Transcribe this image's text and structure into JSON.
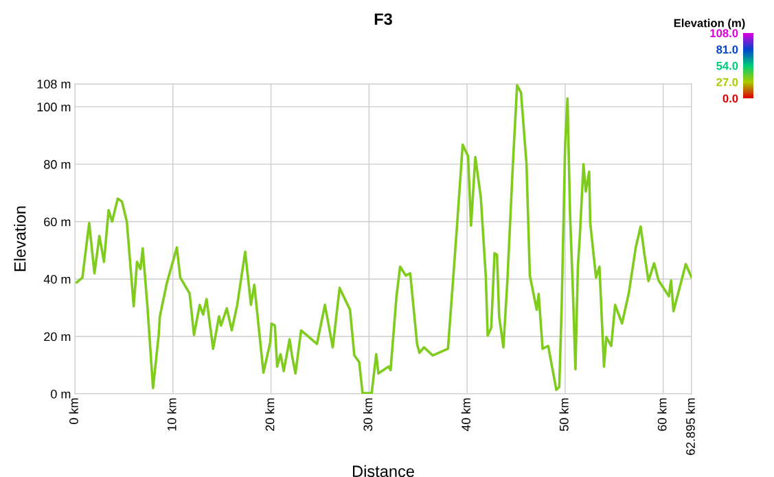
{
  "chart_data": {
    "type": "line",
    "title": "F3",
    "xlabel": "Distance",
    "ylabel": "Elevation",
    "clabel": "Elevation (m)",
    "x": [
      0.19,
      0.77,
      1.46,
      2.0,
      2.5,
      2.97,
      3.44,
      3.8,
      4.37,
      4.8,
      5.3,
      6.0,
      6.34,
      6.69,
      6.92,
      7.39,
      7.97,
      8.55,
      8.67,
      9.36,
      10.4,
      10.75,
      11.7,
      12.15,
      12.73,
      13.08,
      13.43,
      14.1,
      14.7,
      14.9,
      15.5,
      16.0,
      16.56,
      17.37,
      17.96,
      18.3,
      19.23,
      19.93,
      20.05,
      20.4,
      20.63,
      20.98,
      21.3,
      21.9,
      22.14,
      22.5,
      23.07,
      24.69,
      25.5,
      26.3,
      27.0,
      28.06,
      28.5,
      29.0,
      29.34,
      30.27,
      30.73,
      30.96,
      32.0,
      32.2,
      32.8,
      33.17,
      33.75,
      34.2,
      34.9,
      35.14,
      35.6,
      36.5,
      38.05,
      38.9,
      39.55,
      40.1,
      40.4,
      40.84,
      41.4,
      41.9,
      42.1,
      42.46,
      42.8,
      43.05,
      43.27,
      43.7,
      44.1,
      44.67,
      45.1,
      45.5,
      46.06,
      46.4,
      47.1,
      47.3,
      47.7,
      48.27,
      49.1,
      49.4,
      49.65,
      50.0,
      50.24,
      50.5,
      50.8,
      51.05,
      51.3,
      51.5,
      51.87,
      52.1,
      52.45,
      52.56,
      53.15,
      53.5,
      53.96,
      54.2,
      54.7,
      55.1,
      55.8,
      56.5,
      57.2,
      57.7,
      58.1,
      58.5,
      59.07,
      59.53,
      60.58,
      60.8,
      61.05,
      62.3,
      62.895
    ],
    "values": [
      38.8,
      40.5,
      59.5,
      42,
      55,
      46,
      64,
      60,
      68,
      67,
      60,
      30.5,
      46,
      43.5,
      50.7,
      31,
      2,
      20.5,
      27,
      38.3,
      51,
      40.5,
      35,
      20.5,
      31,
      27.6,
      33,
      15.7,
      27,
      23.8,
      29.8,
      22.1,
      31,
      49.5,
      31,
      38,
      7.4,
      18,
      24.5,
      23.8,
      9.5,
      13.8,
      7.9,
      19,
      13.4,
      7.1,
      22.1,
      17.4,
      31,
      16.2,
      36.9,
      29.3,
      13.4,
      11,
      0.2,
      0.2,
      13.8,
      7.1,
      9.5,
      8.3,
      34,
      44.3,
      41.2,
      42,
      17.4,
      14.3,
      16.2,
      13.4,
      15.7,
      55,
      86.8,
      82.8,
      58.6,
      82.5,
      68.4,
      41.4,
      20.3,
      23,
      49,
      48.5,
      27,
      16.2,
      38.8,
      80,
      107.5,
      105,
      80,
      41.2,
      29.3,
      34.8,
      15.7,
      16.7,
      1.4,
      2.4,
      31,
      86.8,
      102.9,
      62.6,
      34.8,
      8.6,
      44.3,
      55,
      80,
      70.5,
      77.4,
      59.5,
      40.5,
      44.3,
      9.5,
      19.8,
      16.7,
      31,
      24.5,
      35.2,
      51,
      58.3,
      48.3,
      39.3,
      45.5,
      39.5,
      34,
      39.5,
      28.8,
      45.2,
      40.5
    ],
    "xlim": [
      0,
      62.895
    ],
    "xticks": [
      {
        "value": 0,
        "label": "0 km"
      },
      {
        "value": 10,
        "label": "10 km"
      },
      {
        "value": 20,
        "label": "20 km"
      },
      {
        "value": 30,
        "label": "30 km"
      },
      {
        "value": 40,
        "label": "40 km"
      },
      {
        "value": 50,
        "label": "50 km"
      },
      {
        "value": 60,
        "label": "60 km"
      },
      {
        "value": 62.895,
        "label": "62.895 km"
      }
    ],
    "ylim": [
      0,
      108
    ],
    "yticks": [
      {
        "value": 0,
        "label": "0 m"
      },
      {
        "value": 20,
        "label": "20 m"
      },
      {
        "value": 40,
        "label": "40 m"
      },
      {
        "value": 60,
        "label": "60 m"
      },
      {
        "value": 80,
        "label": "80 m"
      },
      {
        "value": 100,
        "label": "100 m"
      },
      {
        "value": 108,
        "label": "108 m"
      }
    ],
    "clim": [
      0,
      108
    ],
    "cticks": [
      {
        "value": 108,
        "label": "108.0"
      },
      {
        "value": 81,
        "label": "81.0"
      },
      {
        "value": 54,
        "label": "54.0"
      },
      {
        "value": 27,
        "label": "27.0"
      },
      {
        "value": 0,
        "label": "0.0"
      }
    ],
    "grid": true
  }
}
